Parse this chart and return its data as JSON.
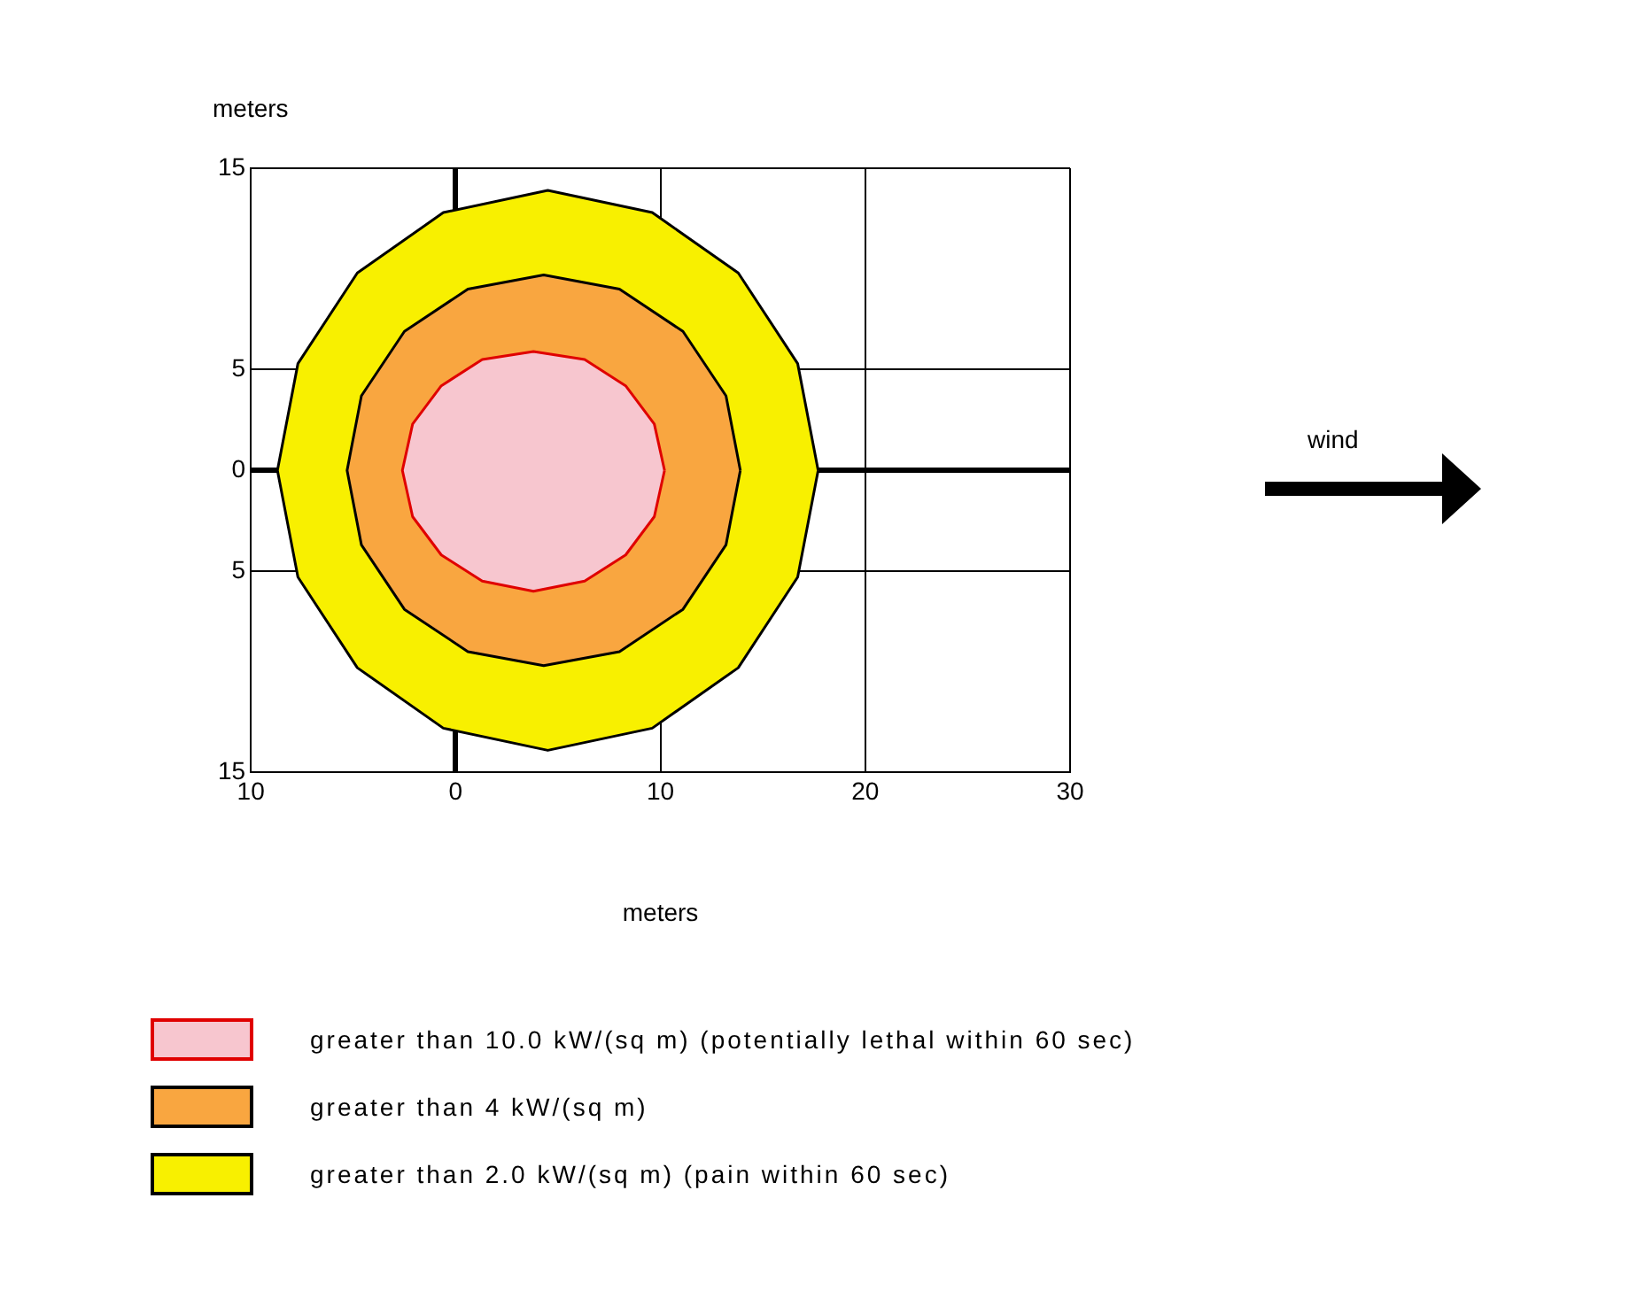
{
  "chart_data": {
    "type": "area",
    "xlabel": "meters",
    "ylabel": "meters",
    "xlim": [
      -10,
      30
    ],
    "xticks": [
      {
        "value": -10,
        "label": "10"
      },
      0,
      10,
      20,
      30
    ],
    "ylim": [
      -15,
      15
    ],
    "yticks": [
      {
        "value": -15,
        "label": "15"
      },
      {
        "value": -5,
        "label": "5"
      },
      0,
      5,
      15
    ],
    "grid": true,
    "legend": "bottom",
    "annotations": [
      "wind"
    ],
    "series": [
      {
        "name": "greater than 10.0 kW/(sq m) (potentially lethal within 60 sec)",
        "color": "#f7c6cf",
        "x": [
          10.2,
          9.7,
          8.3,
          6.3,
          3.8,
          1.3,
          -0.7,
          -2.1,
          -2.6,
          -2.1,
          -0.7,
          1.3,
          3.8,
          6.3,
          8.3,
          9.7,
          10.2
        ],
        "values": [
          0,
          2.3,
          4.2,
          5.5,
          5.9,
          5.5,
          4.2,
          2.3,
          0,
          -2.3,
          -4.2,
          -5.5,
          -6.0,
          -5.5,
          -4.2,
          -2.3,
          0
        ]
      },
      {
        "name": "greater than 4 kW/(sq m)",
        "color": "#f9a640",
        "x": [
          13.9,
          13.2,
          11.1,
          8.0,
          4.3,
          0.6,
          -2.5,
          -4.6,
          -5.3,
          -4.6,
          -2.5,
          0.6,
          4.3,
          8.0,
          11.1,
          13.2,
          13.9
        ],
        "values": [
          0,
          3.7,
          6.9,
          9.0,
          9.7,
          9.0,
          6.9,
          3.7,
          0,
          -3.7,
          -6.9,
          -9.0,
          -9.7,
          -9.0,
          -6.9,
          -3.7,
          0
        ]
      },
      {
        "name": "greater than 2.0 kW/(sq m) (pain within 60 sec)",
        "color": "#f8f000",
        "x": [
          17.7,
          16.7,
          13.8,
          9.6,
          4.5,
          -0.6,
          -4.8,
          -7.7,
          -8.7,
          -7.7,
          -4.8,
          -0.6,
          4.5,
          9.6,
          13.8,
          16.7,
          17.7
        ],
        "values": [
          0,
          5.3,
          9.8,
          12.8,
          13.9,
          12.8,
          9.8,
          5.3,
          0,
          -5.3,
          -9.8,
          -12.8,
          -13.9,
          -12.8,
          -9.8,
          -5.3,
          0
        ]
      }
    ]
  }
}
